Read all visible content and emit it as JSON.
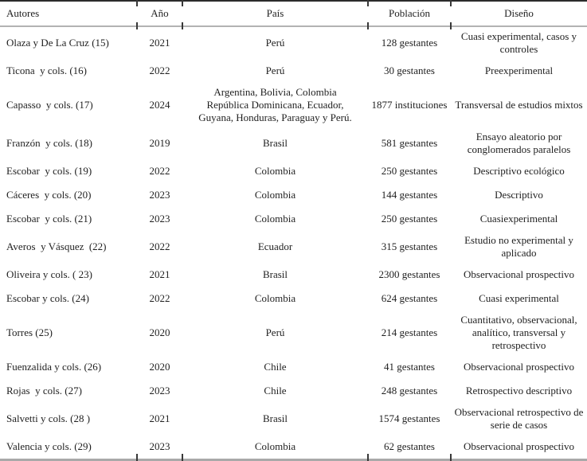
{
  "colors": {
    "text": "#1f1f1f",
    "top_rule": "#2b2b2b",
    "gray_rule": "#a9a9a9",
    "background": "#ffffff"
  },
  "header": {
    "autores": "Autores",
    "ano": "Año",
    "pais": "País",
    "poblacion": "Población",
    "diseno": "Diseño"
  },
  "rows": [
    {
      "autores": "Olaza y De La Cruz (15)",
      "ano": "2021",
      "pais": "Perú",
      "poblacion": "128 gestantes",
      "diseno": "Cuasi experimental, casos y\ncontroles"
    },
    {
      "autores": "Ticona  y cols. (16)",
      "ano": "2022",
      "pais": "Perú",
      "poblacion": "30 gestantes",
      "diseno": "Preexperimental"
    },
    {
      "autores": "Capasso  y cols. (17)",
      "ano": "2024",
      "pais": "Argentina, Bolivia, Colombia\nRepública Dominicana, Ecuador,\nGuyana, Honduras, Paraguay y Perú.",
      "poblacion": "1877 instituciones",
      "diseno": "Transversal de estudios mixtos"
    },
    {
      "autores": "Franzón  y cols. (18)",
      "ano": "2019",
      "pais": "Brasil",
      "poblacion": "581 gestantes",
      "diseno": "Ensayo aleatorio por\nconglomerados paralelos"
    },
    {
      "autores": "Escobar  y cols. (19)",
      "ano": "2022",
      "pais": "Colombia",
      "poblacion": "250 gestantes",
      "diseno": "Descriptivo ecológico"
    },
    {
      "autores": "Cáceres  y cols. (20)",
      "ano": "2023",
      "pais": "Colombia",
      "poblacion": "144 gestantes",
      "diseno": "Descriptivo"
    },
    {
      "autores": "Escobar  y cols. (21)",
      "ano": "2023",
      "pais": "Colombia",
      "poblacion": "250 gestantes",
      "diseno": "Cuasiexperimental"
    },
    {
      "autores": "Averos  y Vásquez  (22)",
      "ano": "2022",
      "pais": "Ecuador",
      "poblacion": "315 gestantes",
      "diseno": "Estudio no experimental y\naplicado"
    },
    {
      "autores": "Oliveira y cols. ( 23)",
      "ano": "2021",
      "pais": "Brasil",
      "poblacion": "2300 gestantes",
      "diseno": "Observacional prospectivo"
    },
    {
      "autores": "Escobar y cols. (24)",
      "ano": "2022",
      "pais": "Colombia",
      "poblacion": "624 gestantes",
      "diseno": "Cuasi experimental"
    },
    {
      "autores": "Torres (25)",
      "ano": "2020",
      "pais": "Perú",
      "poblacion": "214 gestantes",
      "diseno": "Cuantitativo, observacional,\nanalítico, transversal y\nretrospectivo"
    },
    {
      "autores": "Fuenzalida y cols. (26)",
      "ano": "2020",
      "pais": "Chile",
      "poblacion": "41 gestantes",
      "diseno": "Observacional prospectivo"
    },
    {
      "autores": "Rojas  y cols. (27)",
      "ano": "2023",
      "pais": "Chile",
      "poblacion": "248 gestantes",
      "diseno": "Retrospectivo descriptivo"
    },
    {
      "autores": "Salvetti y cols. (28 )",
      "ano": "2021",
      "pais": "Brasil",
      "poblacion": "1574 gestantes",
      "diseno": "Observacional retrospectivo de\nserie de casos"
    },
    {
      "autores": "Valencia y cols. (29)",
      "ano": "2023",
      "pais": "Colombia",
      "poblacion": "62 gestantes",
      "diseno": "Observacional prospectivo"
    }
  ]
}
